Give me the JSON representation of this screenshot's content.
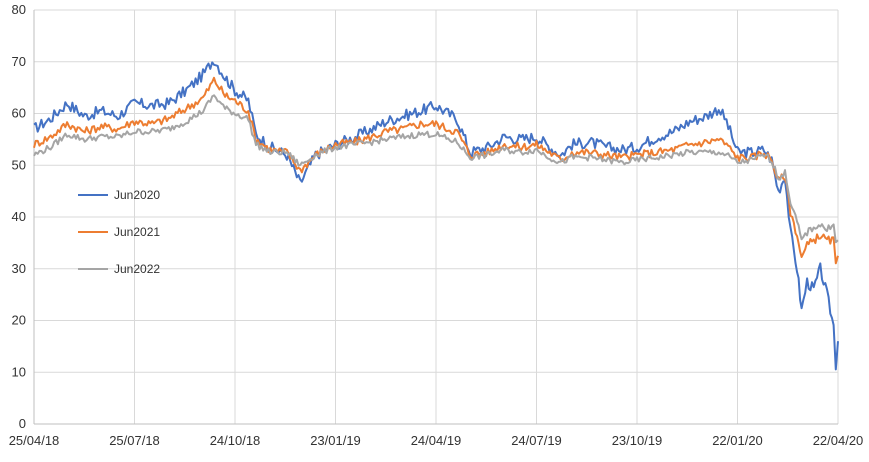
{
  "chart_data": {
    "type": "line",
    "title": "",
    "xlabel": "",
    "ylabel": "",
    "ylim": [
      0,
      80
    ],
    "y_ticks": [
      0,
      10,
      20,
      30,
      40,
      50,
      60,
      70,
      80
    ],
    "xlim": [
      "2018-04-25",
      "2020-04-22"
    ],
    "x_ticks": [
      {
        "date": "2018-04-25",
        "label": "25/04/18"
      },
      {
        "date": "2018-07-25",
        "label": "25/07/18"
      },
      {
        "date": "2018-10-24",
        "label": "24/10/18"
      },
      {
        "date": "2019-01-23",
        "label": "23/01/19"
      },
      {
        "date": "2019-04-24",
        "label": "24/04/19"
      },
      {
        "date": "2019-07-24",
        "label": "24/07/19"
      },
      {
        "date": "2019-10-23",
        "label": "23/10/19"
      },
      {
        "date": "2020-01-22",
        "label": "22/01/20"
      },
      {
        "date": "2020-04-22",
        "label": "22/04/20"
      }
    ],
    "grid": true,
    "legend_position": "middle-left",
    "series": [
      {
        "name": "Jun2020",
        "color": "#4472c4",
        "points": [
          [
            "2018-04-25",
            57
          ],
          [
            "2018-05-10",
            59
          ],
          [
            "2018-05-25",
            62
          ],
          [
            "2018-06-10",
            59.5
          ],
          [
            "2018-06-25",
            60.5
          ],
          [
            "2018-07-10",
            59.5
          ],
          [
            "2018-07-25",
            62
          ],
          [
            "2018-08-10",
            61.5
          ],
          [
            "2018-08-25",
            62
          ],
          [
            "2018-09-10",
            64.5
          ],
          [
            "2018-09-25",
            67.5
          ],
          [
            "2018-10-05",
            70.5
          ],
          [
            "2018-10-15",
            67
          ],
          [
            "2018-10-24",
            64.5
          ],
          [
            "2018-11-05",
            62.5
          ],
          [
            "2018-11-12",
            56
          ],
          [
            "2018-11-25",
            53.5
          ],
          [
            "2018-12-10",
            52
          ],
          [
            "2018-12-22",
            46.5
          ],
          [
            "2019-01-05",
            52
          ],
          [
            "2019-01-23",
            54
          ],
          [
            "2019-02-10",
            55.5
          ],
          [
            "2019-02-25",
            57
          ],
          [
            "2019-03-10",
            58.5
          ],
          [
            "2019-03-25",
            59.5
          ],
          [
            "2019-04-10",
            60.5
          ],
          [
            "2019-04-24",
            61.5
          ],
          [
            "2019-05-05",
            60
          ],
          [
            "2019-05-13",
            59
          ],
          [
            "2019-05-25",
            52.5
          ],
          [
            "2019-06-10",
            53.5
          ],
          [
            "2019-06-25",
            55.5
          ],
          [
            "2019-07-10",
            55
          ],
          [
            "2019-07-24",
            55.5
          ],
          [
            "2019-08-05",
            53.5
          ],
          [
            "2019-08-15",
            52
          ],
          [
            "2019-08-25",
            54
          ],
          [
            "2019-09-10",
            54.5
          ],
          [
            "2019-09-25",
            53.5
          ],
          [
            "2019-10-10",
            53
          ],
          [
            "2019-10-23",
            53.5
          ],
          [
            "2019-11-10",
            55.5
          ],
          [
            "2019-11-25",
            56.5
          ],
          [
            "2019-12-10",
            58.5
          ],
          [
            "2019-12-25",
            59.5
          ],
          [
            "2020-01-05",
            61
          ],
          [
            "2020-01-12",
            58.5
          ],
          [
            "2020-01-22",
            52.5
          ],
          [
            "2020-02-05",
            52.5
          ],
          [
            "2020-02-15",
            53
          ],
          [
            "2020-02-22",
            51
          ],
          [
            "2020-02-28",
            45
          ],
          [
            "2020-03-05",
            48
          ],
          [
            "2020-03-10",
            37
          ],
          [
            "2020-03-16",
            30
          ],
          [
            "2020-03-20",
            22
          ],
          [
            "2020-03-25",
            27.5
          ],
          [
            "2020-03-31",
            26
          ],
          [
            "2020-04-06",
            30
          ],
          [
            "2020-04-12",
            25
          ],
          [
            "2020-04-18",
            19
          ],
          [
            "2020-04-20",
            11.5
          ],
          [
            "2020-04-22",
            16
          ]
        ]
      },
      {
        "name": "Jun2021",
        "color": "#ed7d31",
        "points": [
          [
            "2018-04-25",
            54
          ],
          [
            "2018-05-10",
            55.5
          ],
          [
            "2018-05-25",
            58
          ],
          [
            "2018-06-10",
            56.5
          ],
          [
            "2018-06-25",
            57.5
          ],
          [
            "2018-07-10",
            57
          ],
          [
            "2018-07-25",
            58.5
          ],
          [
            "2018-08-10",
            58
          ],
          [
            "2018-08-25",
            59
          ],
          [
            "2018-09-10",
            61
          ],
          [
            "2018-09-25",
            63
          ],
          [
            "2018-10-05",
            66.5
          ],
          [
            "2018-10-15",
            63.5
          ],
          [
            "2018-10-24",
            62.5
          ],
          [
            "2018-11-05",
            60.5
          ],
          [
            "2018-11-12",
            55
          ],
          [
            "2018-11-25",
            53
          ],
          [
            "2018-12-10",
            52.5
          ],
          [
            "2018-12-22",
            49
          ],
          [
            "2019-01-05",
            52
          ],
          [
            "2019-01-23",
            54
          ],
          [
            "2019-02-10",
            54.5
          ],
          [
            "2019-02-25",
            55.5
          ],
          [
            "2019-03-10",
            56.5
          ],
          [
            "2019-03-25",
            57
          ],
          [
            "2019-04-10",
            58
          ],
          [
            "2019-04-24",
            58
          ],
          [
            "2019-05-05",
            57
          ],
          [
            "2019-05-13",
            56.5
          ],
          [
            "2019-05-25",
            52
          ],
          [
            "2019-06-10",
            52.5
          ],
          [
            "2019-06-25",
            54
          ],
          [
            "2019-07-10",
            53.5
          ],
          [
            "2019-07-24",
            54
          ],
          [
            "2019-08-05",
            52.5
          ],
          [
            "2019-08-15",
            51
          ],
          [
            "2019-08-25",
            52.5
          ],
          [
            "2019-09-10",
            52.5
          ],
          [
            "2019-09-25",
            52
          ],
          [
            "2019-10-10",
            51.5
          ],
          [
            "2019-10-23",
            52
          ],
          [
            "2019-11-10",
            52.5
          ],
          [
            "2019-11-25",
            53
          ],
          [
            "2019-12-10",
            54
          ],
          [
            "2019-12-25",
            54.5
          ],
          [
            "2020-01-05",
            55
          ],
          [
            "2020-01-12",
            54
          ],
          [
            "2020-01-22",
            51.5
          ],
          [
            "2020-02-05",
            51.5
          ],
          [
            "2020-02-15",
            52.5
          ],
          [
            "2020-02-22",
            51
          ],
          [
            "2020-02-28",
            47
          ],
          [
            "2020-03-05",
            48
          ],
          [
            "2020-03-10",
            41
          ],
          [
            "2020-03-16",
            36.5
          ],
          [
            "2020-03-20",
            32
          ],
          [
            "2020-03-25",
            34.5
          ],
          [
            "2020-03-31",
            35.5
          ],
          [
            "2020-04-06",
            36.5
          ],
          [
            "2020-04-12",
            35.5
          ],
          [
            "2020-04-18",
            35.5
          ],
          [
            "2020-04-20",
            30.5
          ],
          [
            "2020-04-22",
            32.5
          ]
        ]
      },
      {
        "name": "Jun2022",
        "color": "#a5a5a5",
        "points": [
          [
            "2018-04-25",
            52
          ],
          [
            "2018-05-10",
            53.5
          ],
          [
            "2018-05-25",
            56
          ],
          [
            "2018-06-10",
            55
          ],
          [
            "2018-06-25",
            55.5
          ],
          [
            "2018-07-10",
            55.5
          ],
          [
            "2018-07-25",
            56.5
          ],
          [
            "2018-08-10",
            56.5
          ],
          [
            "2018-08-25",
            57
          ],
          [
            "2018-09-10",
            58.5
          ],
          [
            "2018-09-25",
            60.5
          ],
          [
            "2018-10-05",
            63.5
          ],
          [
            "2018-10-15",
            61
          ],
          [
            "2018-10-24",
            60
          ],
          [
            "2018-11-05",
            59
          ],
          [
            "2018-11-12",
            54
          ],
          [
            "2018-11-25",
            52.5
          ],
          [
            "2018-12-10",
            52.5
          ],
          [
            "2018-12-22",
            50
          ],
          [
            "2019-01-05",
            52
          ],
          [
            "2019-01-23",
            53.5
          ],
          [
            "2019-02-10",
            54
          ],
          [
            "2019-02-25",
            54.5
          ],
          [
            "2019-03-10",
            55
          ],
          [
            "2019-03-25",
            55.5
          ],
          [
            "2019-04-10",
            56
          ],
          [
            "2019-04-24",
            56
          ],
          [
            "2019-05-05",
            55
          ],
          [
            "2019-05-13",
            54.5
          ],
          [
            "2019-05-25",
            51.5
          ],
          [
            "2019-06-10",
            52
          ],
          [
            "2019-06-25",
            53
          ],
          [
            "2019-07-10",
            52.5
          ],
          [
            "2019-07-24",
            53
          ],
          [
            "2019-08-05",
            51.5
          ],
          [
            "2019-08-15",
            50.5
          ],
          [
            "2019-08-25",
            51.5
          ],
          [
            "2019-09-10",
            51.5
          ],
          [
            "2019-09-25",
            51
          ],
          [
            "2019-10-10",
            50.5
          ],
          [
            "2019-10-23",
            51
          ],
          [
            "2019-11-10",
            51.5
          ],
          [
            "2019-11-25",
            52
          ],
          [
            "2019-12-10",
            52.5
          ],
          [
            "2019-12-25",
            52.5
          ],
          [
            "2020-01-05",
            52.5
          ],
          [
            "2020-01-12",
            52
          ],
          [
            "2020-01-22",
            50.5
          ],
          [
            "2020-02-05",
            51
          ],
          [
            "2020-02-15",
            52
          ],
          [
            "2020-02-22",
            51
          ],
          [
            "2020-02-28",
            47.5
          ],
          [
            "2020-03-05",
            48.5
          ],
          [
            "2020-03-10",
            43
          ],
          [
            "2020-03-16",
            39
          ],
          [
            "2020-03-20",
            35.5
          ],
          [
            "2020-03-25",
            37
          ],
          [
            "2020-03-31",
            38
          ],
          [
            "2020-04-06",
            38.5
          ],
          [
            "2020-04-12",
            37.5
          ],
          [
            "2020-04-18",
            39
          ],
          [
            "2020-04-20",
            35
          ],
          [
            "2020-04-22",
            35.5
          ]
        ]
      }
    ]
  }
}
